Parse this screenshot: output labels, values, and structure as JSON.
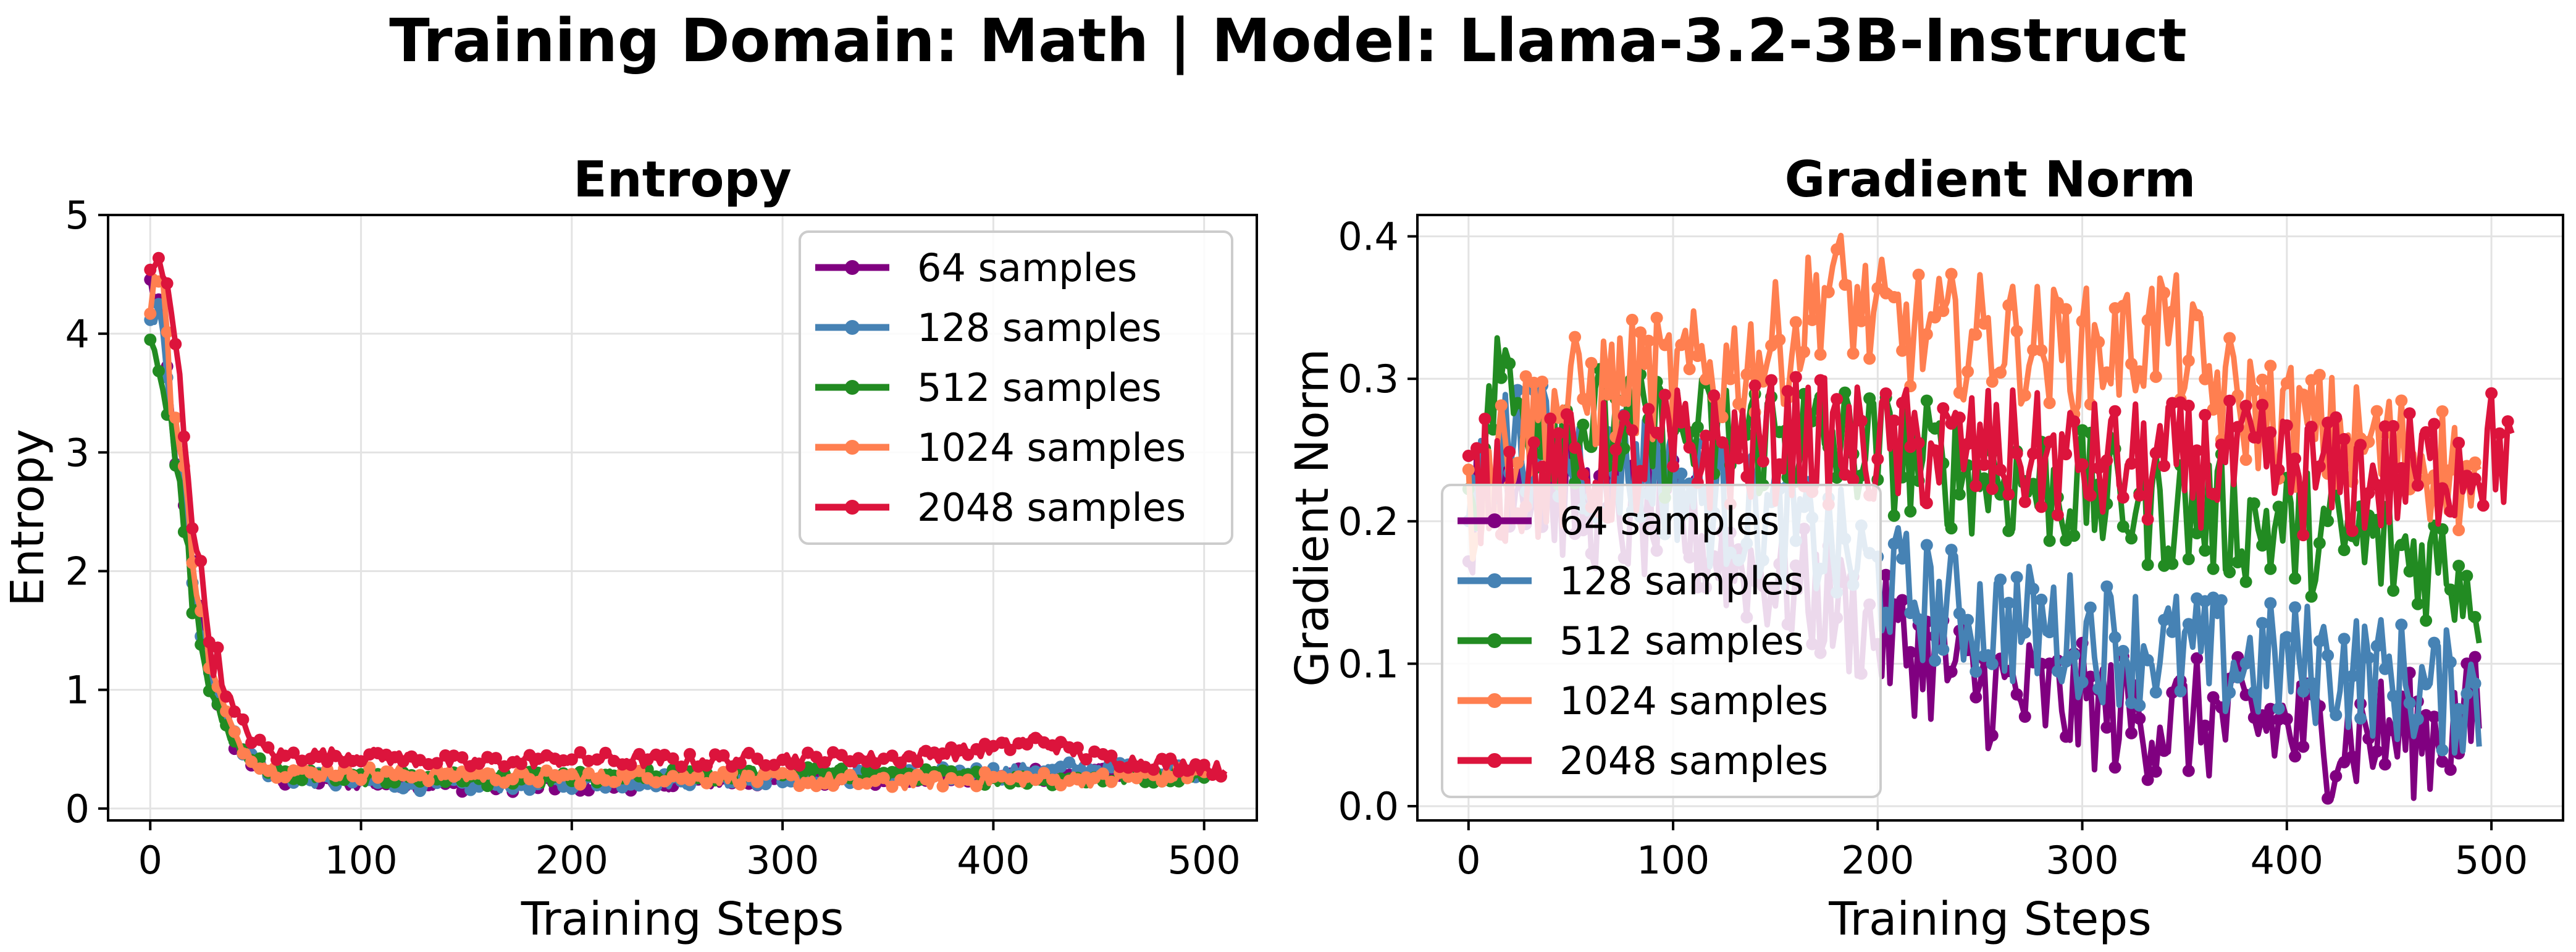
{
  "suptitle": "Training Domain: Math | Model: Llama-3.2-3B-Instruct",
  "chart_data": [
    {
      "type": "line",
      "title": "Entropy",
      "xlabel": "Training Steps",
      "ylabel": "Entropy",
      "xlim": [
        -20,
        525
      ],
      "ylim": [
        -0.1,
        5.0
      ],
      "xticks": [
        0,
        100,
        200,
        300,
        400,
        500
      ],
      "yticks": [
        0,
        1,
        2,
        3,
        4,
        5
      ],
      "grid": true,
      "legend_position": "upper right",
      "markers": true,
      "series": [
        {
          "name": "64 samples",
          "color": "#800080",
          "x": [
            0,
            5,
            10,
            15,
            20,
            25,
            30,
            40,
            50,
            60,
            80,
            100,
            150,
            200,
            250,
            300,
            350,
            400,
            450,
            500
          ],
          "y": [
            4.4,
            4.2,
            3.3,
            2.6,
            2.0,
            1.5,
            1.0,
            0.55,
            0.35,
            0.25,
            0.22,
            0.22,
            0.2,
            0.2,
            0.22,
            0.25,
            0.25,
            0.28,
            0.3,
            0.3
          ]
        },
        {
          "name": "128 samples",
          "color": "#4682b4",
          "x": [
            0,
            5,
            10,
            15,
            20,
            25,
            30,
            40,
            50,
            60,
            80,
            100,
            150,
            200,
            250,
            300,
            350,
            400,
            450,
            500
          ],
          "y": [
            4.2,
            4.1,
            3.2,
            2.7,
            2.0,
            1.5,
            1.0,
            0.6,
            0.38,
            0.28,
            0.24,
            0.22,
            0.2,
            0.22,
            0.24,
            0.26,
            0.28,
            0.3,
            0.35,
            0.32
          ]
        },
        {
          "name": "512 samples",
          "color": "#228b22",
          "x": [
            0,
            5,
            10,
            15,
            20,
            25,
            30,
            40,
            50,
            60,
            80,
            100,
            150,
            200,
            250,
            300,
            350,
            400,
            450,
            500
          ],
          "y": [
            4.0,
            3.8,
            3.1,
            2.5,
            1.8,
            1.3,
            0.9,
            0.55,
            0.4,
            0.3,
            0.28,
            0.26,
            0.25,
            0.25,
            0.28,
            0.3,
            0.28,
            0.26,
            0.25,
            0.3
          ]
        },
        {
          "name": "1024 samples",
          "color": "#ff7f50",
          "x": [
            0,
            5,
            10,
            15,
            20,
            25,
            30,
            40,
            50,
            60,
            80,
            100,
            150,
            200,
            250,
            300,
            350,
            400,
            450,
            500
          ],
          "y": [
            4.1,
            4.7,
            3.5,
            2.9,
            2.2,
            1.6,
            1.1,
            0.6,
            0.4,
            0.32,
            0.3,
            0.3,
            0.28,
            0.26,
            0.27,
            0.25,
            0.22,
            0.25,
            0.25,
            0.3
          ]
        },
        {
          "name": "2048 samples",
          "color": "#dc143c",
          "x": [
            0,
            5,
            10,
            15,
            20,
            25,
            30,
            40,
            50,
            60,
            80,
            100,
            150,
            200,
            250,
            300,
            350,
            400,
            420,
            450,
            500,
            510
          ],
          "y": [
            4.6,
            4.5,
            4.2,
            3.4,
            2.5,
            1.8,
            1.3,
            0.8,
            0.55,
            0.45,
            0.45,
            0.45,
            0.38,
            0.42,
            0.4,
            0.42,
            0.42,
            0.5,
            0.58,
            0.42,
            0.35,
            0.32
          ]
        }
      ]
    },
    {
      "type": "line",
      "title": "Gradient Norm",
      "xlabel": "Training Steps",
      "ylabel": "Gradient Norm",
      "xlim": [
        -25,
        535
      ],
      "ylim": [
        -0.01,
        0.415
      ],
      "xticks": [
        0,
        100,
        200,
        300,
        400,
        500
      ],
      "yticks": [
        0.0,
        0.1,
        0.2,
        0.3,
        0.4
      ],
      "grid": true,
      "legend_position": "lower left",
      "markers": true,
      "series": [
        {
          "name": "64 samples",
          "color": "#800080",
          "x": [
            0,
            10,
            20,
            40,
            60,
            80,
            100,
            120,
            150,
            180,
            200,
            230,
            260,
            300,
            340,
            380,
            420,
            450,
            470,
            490,
            495
          ],
          "y": [
            0.2,
            0.23,
            0.24,
            0.22,
            0.21,
            0.2,
            0.2,
            0.18,
            0.16,
            0.14,
            0.12,
            0.1,
            0.08,
            0.07,
            0.06,
            0.06,
            0.05,
            0.05,
            0.05,
            0.06,
            0.07
          ]
        },
        {
          "name": "128 samples",
          "color": "#4682b4",
          "x": [
            0,
            10,
            20,
            40,
            60,
            80,
            100,
            120,
            150,
            180,
            200,
            230,
            260,
            300,
            340,
            380,
            420,
            450,
            470,
            490,
            495
          ],
          "y": [
            0.21,
            0.24,
            0.26,
            0.25,
            0.24,
            0.24,
            0.23,
            0.21,
            0.2,
            0.18,
            0.16,
            0.14,
            0.13,
            0.12,
            0.11,
            0.1,
            0.1,
            0.09,
            0.08,
            0.08,
            0.07
          ]
        },
        {
          "name": "512 samples",
          "color": "#228b22",
          "x": [
            0,
            10,
            15,
            20,
            40,
            60,
            80,
            100,
            130,
            160,
            200,
            230,
            260,
            300,
            340,
            380,
            420,
            450,
            480,
            495
          ],
          "y": [
            0.22,
            0.26,
            0.33,
            0.28,
            0.27,
            0.27,
            0.26,
            0.26,
            0.26,
            0.26,
            0.25,
            0.24,
            0.23,
            0.22,
            0.21,
            0.2,
            0.19,
            0.18,
            0.17,
            0.15
          ]
        },
        {
          "name": "1024 samples",
          "color": "#ff7f50",
          "x": [
            0,
            10,
            20,
            40,
            60,
            80,
            100,
            130,
            160,
            175,
            200,
            230,
            260,
            290,
            320,
            340,
            360,
            380,
            420,
            450,
            480,
            495
          ],
          "y": [
            0.2,
            0.24,
            0.26,
            0.28,
            0.29,
            0.3,
            0.3,
            0.31,
            0.33,
            0.37,
            0.34,
            0.33,
            0.33,
            0.32,
            0.32,
            0.34,
            0.3,
            0.28,
            0.26,
            0.25,
            0.24,
            0.21
          ]
        },
        {
          "name": "2048 samples",
          "color": "#dc143c",
          "x": [
            0,
            10,
            20,
            40,
            60,
            80,
            100,
            130,
            160,
            200,
            230,
            260,
            300,
            340,
            380,
            420,
            450,
            480,
            500,
            510
          ],
          "y": [
            0.22,
            0.23,
            0.23,
            0.23,
            0.24,
            0.24,
            0.25,
            0.25,
            0.26,
            0.25,
            0.25,
            0.25,
            0.24,
            0.24,
            0.24,
            0.23,
            0.23,
            0.24,
            0.25,
            0.25
          ]
        }
      ]
    }
  ]
}
